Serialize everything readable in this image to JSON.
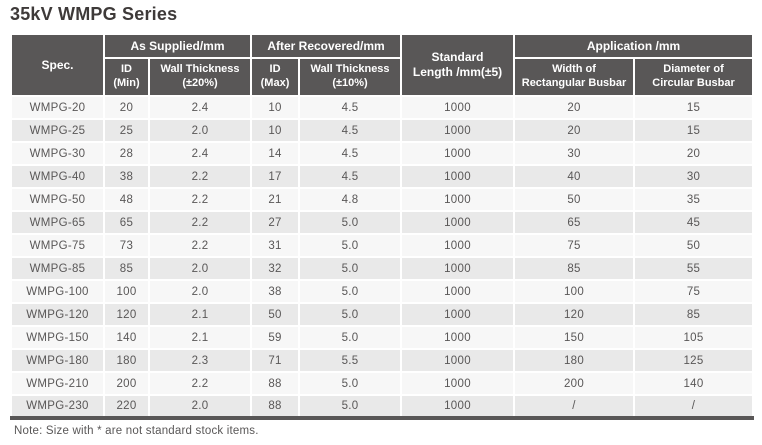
{
  "title": "35kV WMPG Series",
  "note": "Note: Size with * are not standard stock items.",
  "colors": {
    "header_bg": "#595757",
    "header_text": "#ffffff",
    "title_text": "#3e3a39",
    "body_text": "#595757",
    "row_light": "#f7f7f7",
    "row_alt": "#e9e9e9",
    "bottom_border": "#595757"
  },
  "table": {
    "header": {
      "spec": "Spec.",
      "as_supplied": "As Supplied/mm",
      "after_recovered": "After Recovered/mm",
      "standard_length": "Standard\nLength /mm(±5)",
      "application": "Application /mm",
      "id_min": "ID\n(Min)",
      "wall_20": "Wall Thickness\n(±20%)",
      "id_max": "ID\n(Max)",
      "wall_10": "Wall Thickness\n(±10%)",
      "width_rect": "Width of\nRectangular Busbar",
      "diam_circ": "Diameter of\nCircular Busbar"
    },
    "rows": [
      [
        "WMPG-20",
        "20",
        "2.4",
        "10",
        "4.5",
        "1000",
        "20",
        "15"
      ],
      [
        "WMPG-25",
        "25",
        "2.0",
        "10",
        "4.5",
        "1000",
        "20",
        "15"
      ],
      [
        "WMPG-30",
        "28",
        "2.4",
        "14",
        "4.5",
        "1000",
        "30",
        "20"
      ],
      [
        "WMPG-40",
        "38",
        "2.2",
        "17",
        "4.5",
        "1000",
        "40",
        "30"
      ],
      [
        "WMPG-50",
        "48",
        "2.2",
        "21",
        "4.8",
        "1000",
        "50",
        "35"
      ],
      [
        "WMPG-65",
        "65",
        "2.2",
        "27",
        "5.0",
        "1000",
        "65",
        "45"
      ],
      [
        "WMPG-75",
        "73",
        "2.2",
        "31",
        "5.0",
        "1000",
        "75",
        "50"
      ],
      [
        "WMPG-85",
        "85",
        "2.0",
        "32",
        "5.0",
        "1000",
        "85",
        "55"
      ],
      [
        "WMPG-100",
        "100",
        "2.0",
        "38",
        "5.0",
        "1000",
        "100",
        "75"
      ],
      [
        "WMPG-120",
        "120",
        "2.1",
        "50",
        "5.0",
        "1000",
        "120",
        "85"
      ],
      [
        "WMPG-150",
        "140",
        "2.1",
        "59",
        "5.0",
        "1000",
        "150",
        "105"
      ],
      [
        "WMPG-180",
        "180",
        "2.3",
        "71",
        "5.5",
        "1000",
        "180",
        "125"
      ],
      [
        "WMPG-210",
        "200",
        "2.2",
        "88",
        "5.0",
        "1000",
        "200",
        "140"
      ],
      [
        "WMPG-230",
        "220",
        "2.0",
        "88",
        "5.0",
        "1000",
        "/",
        "/"
      ]
    ]
  }
}
